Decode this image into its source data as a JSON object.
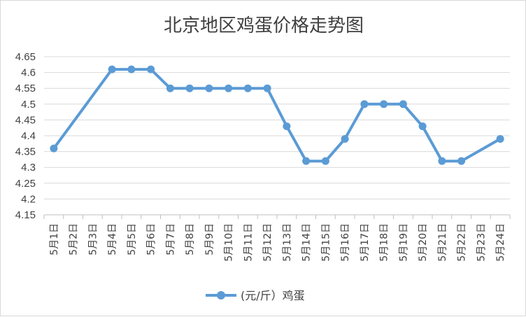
{
  "chart_data": {
    "type": "line",
    "title": "北京地区鸡蛋价格走势图",
    "xlabel": "",
    "ylabel": "",
    "ylim": [
      4.15,
      4.65
    ],
    "y_ticks": [
      "4.15",
      "4.2",
      "4.25",
      "4.3",
      "4.35",
      "4.4",
      "4.45",
      "4.5",
      "4.55",
      "4.6",
      "4.65"
    ],
    "grid": true,
    "legend_position": "bottom",
    "categories": [
      "5月1日",
      "5月2日",
      "5月3日",
      "5月4日",
      "5月5日",
      "5月6日",
      "5月7日",
      "5月8日",
      "5月9日",
      "5月10日",
      "5月11日",
      "5月12日",
      "5月13日",
      "5月14日",
      "5月15日",
      "5月16日",
      "5月17日",
      "5月18日",
      "5月19日",
      "5月20日",
      "5月21日",
      "5月22日",
      "5月23日",
      "5月24日"
    ],
    "series": [
      {
        "name": "(元/斤）鸡蛋",
        "color": "#5b9bd5",
        "values": [
          4.36,
          null,
          null,
          4.61,
          4.61,
          4.61,
          4.55,
          4.55,
          4.55,
          4.55,
          4.55,
          4.55,
          4.43,
          4.32,
          4.32,
          4.39,
          4.5,
          4.5,
          4.5,
          4.43,
          4.32,
          4.32,
          null,
          4.39
        ]
      }
    ]
  }
}
